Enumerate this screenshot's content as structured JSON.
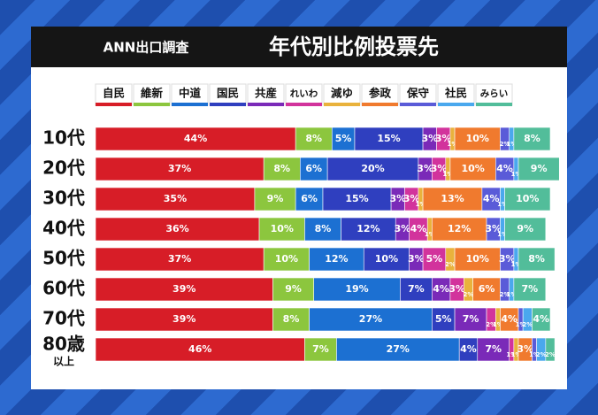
{
  "chart_data": {
    "type": "stacked-bar",
    "title": "年代別比例投票先",
    "subtitle": "ANN出口調査",
    "categories": [
      "10代",
      "20代",
      "30代",
      "40代",
      "50代",
      "60代",
      "70代",
      "80歳"
    ],
    "category_sublabels": [
      null,
      null,
      null,
      null,
      null,
      null,
      null,
      "以上"
    ],
    "series": [
      {
        "name": "自民",
        "color": "#d71d27",
        "values": [
          44,
          37,
          35,
          36,
          37,
          39,
          39,
          46
        ],
        "value_labels": [
          "44%",
          "37%",
          "35%",
          "36%",
          "37%",
          "39%",
          "39%",
          "46%"
        ]
      },
      {
        "name": "維新",
        "color": "#8cc63e",
        "values": [
          8,
          8,
          9,
          10,
          10,
          9,
          8,
          7
        ],
        "value_labels": [
          "8%",
          "8%",
          "9%",
          "10%",
          "10%",
          "9%",
          "8%",
          "7%"
        ]
      },
      {
        "name": "中道",
        "color": "#1c70d2",
        "values": [
          5,
          6,
          6,
          8,
          12,
          19,
          27,
          27
        ],
        "value_labels": [
          "5%",
          "6%",
          "6%",
          "8%",
          "12%",
          "19%",
          "27%",
          "27%"
        ]
      },
      {
        "name": "国民",
        "color": "#2f3fbf",
        "values": [
          15,
          20,
          15,
          12,
          10,
          7,
          5,
          4
        ],
        "value_labels": [
          "15%",
          "20%",
          "15%",
          "12%",
          "10%",
          "7%",
          "5%",
          "4%"
        ]
      },
      {
        "name": "共産",
        "color": "#7a2ab8",
        "values": [
          3,
          3,
          3,
          3,
          3,
          4,
          7,
          7
        ],
        "value_labels": [
          "3%",
          "3%",
          "3%",
          "3%",
          "3%",
          "4%",
          "7%",
          "7%"
        ]
      },
      {
        "name": "れいわ",
        "color": "#d2339c",
        "values": [
          3,
          3,
          3,
          4,
          5,
          3,
          2,
          1
        ],
        "value_labels": [
          "3%",
          "3%",
          "3%",
          "4%",
          "5%",
          "3%",
          "2%",
          "1%"
        ]
      },
      {
        "name": "減ゆ",
        "color": "#e9b23c",
        "values": [
          1,
          1,
          1,
          1,
          2,
          2,
          1,
          1
        ],
        "value_labels": [
          "1%",
          "1%",
          "1%",
          "1%",
          "2%",
          "2%",
          "1%",
          "1%"
        ]
      },
      {
        "name": "参政",
        "color": "#f07a2e",
        "values": [
          10,
          10,
          13,
          12,
          10,
          6,
          4,
          3
        ],
        "value_labels": [
          "10%",
          "10%",
          "13%",
          "12%",
          "10%",
          "6%",
          "4%",
          "3%"
        ]
      },
      {
        "name": "保守",
        "color": "#5a5bd8",
        "values": [
          2,
          4,
          4,
          3,
          3,
          2,
          1,
          1
        ],
        "value_labels": [
          "2%",
          "4%",
          "4%",
          "3%",
          "3%",
          "2%",
          "1%",
          "1%"
        ]
      },
      {
        "name": "社民",
        "color": "#4aa8ee",
        "values": [
          1,
          1,
          1,
          1,
          1,
          1,
          2,
          2
        ],
        "value_labels": [
          "1%",
          "1%",
          "1%",
          "1%",
          "1%",
          "1%",
          "2%",
          "2%"
        ]
      },
      {
        "name": "みらい",
        "color": "#52bd9a",
        "values": [
          8,
          9,
          10,
          9,
          8,
          7,
          4,
          2
        ],
        "value_labels": [
          "8%",
          "9%",
          "10%",
          "9%",
          "8%",
          "7%",
          "4%",
          "2%"
        ]
      }
    ]
  }
}
